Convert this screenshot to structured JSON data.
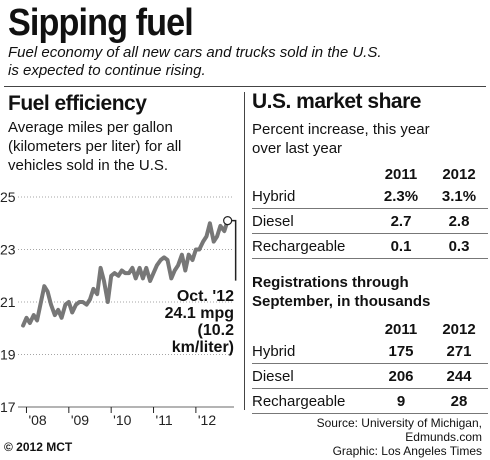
{
  "header": {
    "title": "Sipping fuel",
    "intro_line1": "Fuel economy of all new cars and trucks sold in the U.S.",
    "intro_line2": "is expected to continue rising."
  },
  "left": {
    "heading": "Fuel efficiency",
    "sub_line1": "Average miles per gallon",
    "sub_line2": "(kilometers per liter) for all",
    "sub_line3": "vehicles sold in the U.S.",
    "annotation": {
      "line1": "Oct. '12",
      "line2": "24.1 mpg",
      "line3": "(10.2",
      "line4": "km/liter)"
    }
  },
  "chart_data": {
    "type": "line",
    "title": "Fuel efficiency",
    "ylabel": "Average miles per gallon",
    "ylim": [
      17,
      25
    ],
    "yticks": [
      17,
      19,
      21,
      23,
      25
    ],
    "xtick_labels": [
      "'08",
      "'09",
      "'10",
      "'11",
      "'12"
    ],
    "xtick_positions": [
      2008,
      2009,
      2010,
      2011,
      2012
    ],
    "xlim": [
      2007.8,
      2012.9
    ],
    "grid": "horizontal dotted",
    "series": [
      {
        "x": [
          2007.92,
          2008.0,
          2008.08,
          2008.17,
          2008.25,
          2008.33,
          2008.42,
          2008.5,
          2008.58,
          2008.67,
          2008.75,
          2008.83,
          2008.92,
          2009.0,
          2009.08,
          2009.17,
          2009.25,
          2009.33,
          2009.42,
          2009.5,
          2009.58,
          2009.67,
          2009.75,
          2009.83,
          2009.92,
          2010.0,
          2010.08,
          2010.17,
          2010.25,
          2010.33,
          2010.42,
          2010.5,
          2010.58,
          2010.67,
          2010.75,
          2010.83,
          2010.92,
          2011.0,
          2011.08,
          2011.17,
          2011.25,
          2011.33,
          2011.42,
          2011.5,
          2011.58,
          2011.67,
          2011.75,
          2011.83,
          2011.92,
          2012.0,
          2012.08,
          2012.17,
          2012.25,
          2012.33,
          2012.42,
          2012.5,
          2012.58,
          2012.67,
          2012.75
        ],
        "y": [
          20.1,
          20.4,
          20.2,
          20.5,
          20.3,
          20.9,
          21.6,
          21.4,
          20.9,
          20.5,
          20.7,
          20.4,
          20.9,
          21.0,
          20.6,
          20.9,
          21.0,
          21.0,
          20.9,
          21.1,
          21.5,
          21.3,
          22.3,
          21.8,
          21.0,
          22.0,
          22.1,
          22.0,
          22.2,
          22.1,
          22.1,
          22.3,
          21.9,
          22.3,
          21.9,
          22.3,
          21.8,
          22.1,
          22.4,
          22.6,
          22.7,
          22.6,
          21.9,
          22.2,
          22.4,
          22.8,
          22.2,
          22.8,
          22.6,
          23.0,
          23.0,
          23.3,
          23.5,
          24.0,
          23.3,
          23.5,
          23.9,
          23.7,
          24.1
        ]
      }
    ],
    "annotation": "Oct. '12 24.1 mpg (10.2 km/liter)"
  },
  "right": {
    "heading": "U.S. market share",
    "sub_line1": "Percent increase, this year",
    "sub_line2": "over last year",
    "table1": {
      "columns": [
        "2011",
        "2012"
      ],
      "rows": [
        {
          "label": "Hybrid",
          "v2011": "2.3%",
          "v2012": "3.1%"
        },
        {
          "label": "Diesel",
          "v2011": "2.7",
          "v2012": "2.8"
        },
        {
          "label": "Rechargeable",
          "v2011": "0.1",
          "v2012": "0.3"
        }
      ]
    },
    "sub2_line1": "Registrations through",
    "sub2_line2": "September, in thousands",
    "table2": {
      "columns": [
        "2011",
        "2012"
      ],
      "rows": [
        {
          "label": "Hybrid",
          "v2011": "175",
          "v2012": "271"
        },
        {
          "label": "Diesel",
          "v2011": "206",
          "v2012": "244"
        },
        {
          "label": "Rechargeable",
          "v2011": "9",
          "v2012": "28"
        }
      ]
    }
  },
  "footer": {
    "source_line1": "Source: University of Michigan,",
    "source_line2": "Edmunds.com",
    "source_line3": "Graphic: Los Angeles Times",
    "credit": "© 2012 MCT"
  }
}
